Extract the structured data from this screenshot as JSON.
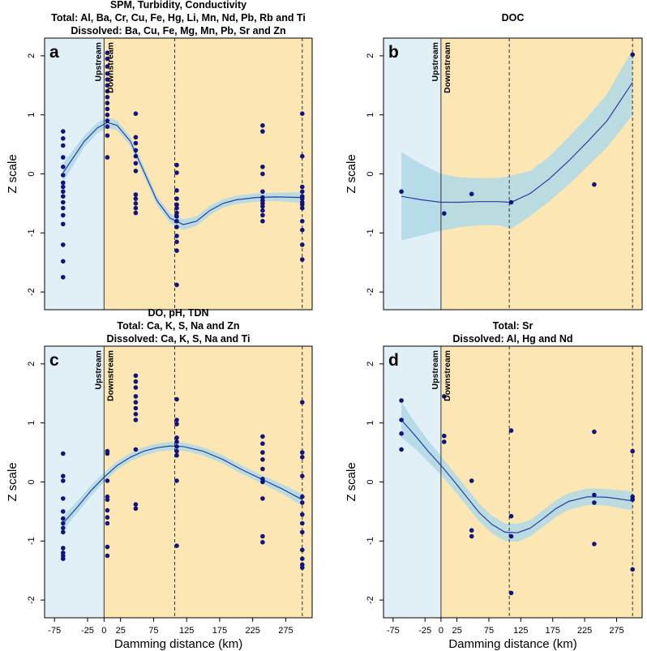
{
  "colors": {
    "upstream_bg": "#E1F0F7",
    "downstream_bg": "#FCE6B3",
    "ci_band": "#AED8E6",
    "fit_line": "#2A3F9F",
    "points": "#11137E"
  },
  "chart_data": [
    {
      "type": "scatter",
      "panel": "a",
      "title_lines": [
        "SPM, Turbidity, Conductivity",
        "Total: Al, Ba, Cr, Cu, Fe, Hg, Li, Mn, Nd, Pb, Rb and Ti",
        "Dissolved: Ba, Cu, Fe, Mg, Mn, Pb, Sr and Zn"
      ],
      "xlabel": "",
      "ylabel": "Z scale",
      "xlim": [
        -90,
        315
      ],
      "ylim": [
        -2.3,
        2.3
      ],
      "x_ticks": [],
      "y_ticks": [
        -2,
        -1,
        0,
        1,
        2
      ],
      "zones": {
        "upstream_label": "Upstream",
        "downstream_label": "Downstream",
        "dam_x": 0,
        "dashed_x": [
          107,
          300
        ]
      },
      "points": [
        [
          -62,
          0.72
        ],
        [
          -62,
          0.6
        ],
        [
          -62,
          0.48
        ],
        [
          -62,
          0.28
        ],
        [
          -62,
          0.12
        ],
        [
          -62,
          -0.02
        ],
        [
          -62,
          -0.15
        ],
        [
          -62,
          -0.22
        ],
        [
          -62,
          -0.3
        ],
        [
          -62,
          -0.38
        ],
        [
          -62,
          -0.48
        ],
        [
          -62,
          -0.58
        ],
        [
          -62,
          -0.7
        ],
        [
          -62,
          -0.85
        ],
        [
          -62,
          -1.2
        ],
        [
          -62,
          -1.48
        ],
        [
          -62,
          -1.75
        ],
        [
          5,
          2.05
        ],
        [
          5,
          1.95
        ],
        [
          5,
          1.82
        ],
        [
          5,
          1.7
        ],
        [
          5,
          1.6
        ],
        [
          5,
          1.5
        ],
        [
          5,
          1.4
        ],
        [
          5,
          1.3
        ],
        [
          5,
          1.2
        ],
        [
          5,
          1.1
        ],
        [
          5,
          1.0
        ],
        [
          5,
          0.9
        ],
        [
          5,
          0.8
        ],
        [
          5,
          0.65
        ],
        [
          5,
          0.28
        ],
        [
          48,
          1.02
        ],
        [
          48,
          0.62
        ],
        [
          48,
          0.52
        ],
        [
          48,
          0.4
        ],
        [
          48,
          0.3
        ],
        [
          48,
          0.18
        ],
        [
          48,
          0.05
        ],
        [
          48,
          -0.35
        ],
        [
          48,
          -0.42
        ],
        [
          48,
          -0.5
        ],
        [
          48,
          -0.58
        ],
        [
          48,
          -0.66
        ],
        [
          110,
          0.15
        ],
        [
          110,
          0.02
        ],
        [
          110,
          -0.28
        ],
        [
          110,
          -0.42
        ],
        [
          110,
          -0.52
        ],
        [
          110,
          -0.58
        ],
        [
          110,
          -0.66
        ],
        [
          110,
          -0.72
        ],
        [
          110,
          -0.8
        ],
        [
          110,
          -0.9
        ],
        [
          110,
          -1.05
        ],
        [
          110,
          -1.15
        ],
        [
          110,
          -1.3
        ],
        [
          110,
          -1.88
        ],
        [
          240,
          0.82
        ],
        [
          240,
          0.72
        ],
        [
          240,
          0.12
        ],
        [
          240,
          0.0
        ],
        [
          240,
          -0.3
        ],
        [
          240,
          -0.4
        ],
        [
          240,
          -0.45
        ],
        [
          240,
          -0.5
        ],
        [
          240,
          -0.55
        ],
        [
          240,
          -0.62
        ],
        [
          240,
          -0.7
        ],
        [
          240,
          -0.8
        ],
        [
          300,
          1.02
        ],
        [
          300,
          0.3
        ],
        [
          300,
          -0.22
        ],
        [
          300,
          -0.3
        ],
        [
          300,
          -0.38
        ],
        [
          300,
          -0.42
        ],
        [
          300,
          -0.48
        ],
        [
          300,
          -0.52
        ],
        [
          300,
          -0.58
        ],
        [
          300,
          -0.8
        ],
        [
          300,
          -0.95
        ],
        [
          300,
          -1.2
        ],
        [
          300,
          -1.45
        ]
      ],
      "fit": [
        [
          -62,
          0.02
        ],
        [
          -30,
          0.55
        ],
        [
          -10,
          0.78
        ],
        [
          5,
          0.87
        ],
        [
          20,
          0.82
        ],
        [
          40,
          0.55
        ],
        [
          60,
          0.05
        ],
        [
          80,
          -0.45
        ],
        [
          100,
          -0.75
        ],
        [
          120,
          -0.86
        ],
        [
          140,
          -0.8
        ],
        [
          160,
          -0.62
        ],
        [
          180,
          -0.5
        ],
        [
          200,
          -0.44
        ],
        [
          230,
          -0.4
        ],
        [
          260,
          -0.39
        ],
        [
          300,
          -0.4
        ]
      ],
      "ci_halfwidth": [
        0.16,
        0.1,
        0.09,
        0.09,
        0.08,
        0.08,
        0.08,
        0.08,
        0.08,
        0.09,
        0.08,
        0.08,
        0.07,
        0.07,
        0.07,
        0.07,
        0.09
      ]
    },
    {
      "type": "scatter",
      "panel": "b",
      "title_lines": [
        "DOC"
      ],
      "xlabel": "",
      "ylabel": "Z scale",
      "xlim": [
        -90,
        315
      ],
      "ylim": [
        -2.3,
        2.3
      ],
      "x_ticks": [],
      "y_ticks": [
        -2,
        -1,
        0,
        1,
        2
      ],
      "zones": {
        "upstream_label": "Upstream",
        "downstream_label": "Downstream",
        "dam_x": 0,
        "dashed_x": [
          107,
          300
        ]
      },
      "points": [
        [
          -62,
          -0.3
        ],
        [
          5,
          -0.67
        ],
        [
          48,
          -0.34
        ],
        [
          110,
          -0.48
        ],
        [
          240,
          -0.18
        ],
        [
          300,
          2.02
        ]
      ],
      "fit": [
        [
          -62,
          -0.38
        ],
        [
          -30,
          -0.44
        ],
        [
          0,
          -0.48
        ],
        [
          30,
          -0.48
        ],
        [
          60,
          -0.47
        ],
        [
          90,
          -0.47
        ],
        [
          110,
          -0.48
        ],
        [
          140,
          -0.33
        ],
        [
          170,
          -0.08
        ],
        [
          200,
          0.22
        ],
        [
          230,
          0.55
        ],
        [
          260,
          0.9
        ],
        [
          300,
          1.55
        ]
      ],
      "ci_halfwidth": [
        0.75,
        0.6,
        0.48,
        0.42,
        0.4,
        0.4,
        0.45,
        0.38,
        0.38,
        0.4,
        0.42,
        0.45,
        0.55
      ]
    },
    {
      "type": "scatter",
      "panel": "c",
      "title_lines": [
        "DO, pH, TDN",
        "Total:  Ca, K, S, Na and Zn",
        "Dissolved: Ca, K, S,  Na and Ti"
      ],
      "xlabel": "Damming distance (km)",
      "ylabel": "Z scale",
      "xlim": [
        -90,
        315
      ],
      "ylim": [
        -2.3,
        2.3
      ],
      "x_ticks": [
        -75,
        -25,
        0,
        25,
        75,
        125,
        175,
        225,
        275
      ],
      "y_ticks": [
        -2,
        -1,
        0,
        1,
        2
      ],
      "zones": {
        "upstream_label": "Upstream",
        "downstream_label": "Downstream",
        "dam_x": 0,
        "dashed_x": [
          107,
          300
        ]
      },
      "points": [
        [
          -62,
          0.48
        ],
        [
          -62,
          0.1
        ],
        [
          -62,
          0.02
        ],
        [
          -62,
          -0.28
        ],
        [
          -62,
          -0.5
        ],
        [
          -62,
          -0.62
        ],
        [
          -62,
          -0.7
        ],
        [
          -62,
          -0.78
        ],
        [
          -62,
          -0.85
        ],
        [
          -62,
          -1.12
        ],
        [
          -62,
          -1.2
        ],
        [
          -62,
          -1.25
        ],
        [
          -62,
          -1.3
        ],
        [
          5,
          0.52
        ],
        [
          5,
          0.48
        ],
        [
          5,
          0.02
        ],
        [
          5,
          -0.25
        ],
        [
          5,
          -0.3
        ],
        [
          5,
          -0.48
        ],
        [
          5,
          -0.6
        ],
        [
          5,
          -0.7
        ],
        [
          5,
          -1.1
        ],
        [
          5,
          -1.25
        ],
        [
          48,
          1.8
        ],
        [
          48,
          1.7
        ],
        [
          48,
          1.6
        ],
        [
          48,
          1.45
        ],
        [
          48,
          1.35
        ],
        [
          48,
          1.25
        ],
        [
          48,
          1.15
        ],
        [
          48,
          1.05
        ],
        [
          48,
          0.55
        ],
        [
          48,
          -0.38
        ],
        [
          48,
          -0.45
        ],
        [
          110,
          1.4
        ],
        [
          110,
          1.05
        ],
        [
          110,
          0.98
        ],
        [
          110,
          0.75
        ],
        [
          110,
          0.68
        ],
        [
          110,
          0.6
        ],
        [
          110,
          0.52
        ],
        [
          110,
          0.45
        ],
        [
          110,
          0.02
        ],
        [
          110,
          -1.08
        ],
        [
          240,
          0.77
        ],
        [
          240,
          0.65
        ],
        [
          240,
          0.5
        ],
        [
          240,
          0.38
        ],
        [
          240,
          0.22
        ],
        [
          240,
          0.05
        ],
        [
          240,
          0.0
        ],
        [
          240,
          -0.28
        ],
        [
          240,
          -0.92
        ],
        [
          240,
          -1.02
        ],
        [
          300,
          1.35
        ],
        [
          300,
          0.5
        ],
        [
          300,
          0.42
        ],
        [
          300,
          0.1
        ],
        [
          300,
          -0.25
        ],
        [
          300,
          -0.35
        ],
        [
          300,
          -0.55
        ],
        [
          300,
          -0.7
        ],
        [
          300,
          -0.85
        ],
        [
          300,
          -1.15
        ],
        [
          300,
          -1.3
        ],
        [
          300,
          -1.4
        ],
        [
          300,
          -1.45
        ]
      ],
      "fit": [
        [
          -62,
          -0.7
        ],
        [
          -40,
          -0.42
        ],
        [
          -20,
          -0.15
        ],
        [
          0,
          0.08
        ],
        [
          20,
          0.28
        ],
        [
          40,
          0.42
        ],
        [
          60,
          0.52
        ],
        [
          80,
          0.58
        ],
        [
          100,
          0.61
        ],
        [
          120,
          0.6
        ],
        [
          150,
          0.52
        ],
        [
          180,
          0.38
        ],
        [
          210,
          0.2
        ],
        [
          240,
          0.04
        ],
        [
          270,
          -0.12
        ],
        [
          300,
          -0.3
        ]
      ],
      "ci_halfwidth": [
        0.12,
        0.1,
        0.09,
        0.08,
        0.07,
        0.07,
        0.07,
        0.07,
        0.07,
        0.07,
        0.07,
        0.07,
        0.07,
        0.07,
        0.08,
        0.1
      ]
    },
    {
      "type": "scatter",
      "panel": "d",
      "title_lines": [
        "Total: Sr",
        "Dissolved: Al, Hg and Nd"
      ],
      "xlabel": "Damming distance (km)",
      "ylabel": "Z scale",
      "xlim": [
        -90,
        315
      ],
      "ylim": [
        -2.3,
        2.3
      ],
      "x_ticks": [
        -75,
        -25,
        0,
        25,
        75,
        125,
        175,
        225,
        275
      ],
      "y_ticks": [
        -2,
        -1,
        0,
        1,
        2
      ],
      "zones": {
        "upstream_label": "Upstream",
        "downstream_label": "Downstream",
        "dam_x": 0,
        "dashed_x": [
          107,
          300
        ]
      },
      "points": [
        [
          -62,
          1.38
        ],
        [
          -62,
          1.05
        ],
        [
          -62,
          0.82
        ],
        [
          -62,
          0.55
        ],
        [
          5,
          1.45
        ],
        [
          5,
          0.78
        ],
        [
          5,
          0.68
        ],
        [
          48,
          0.02
        ],
        [
          48,
          -0.82
        ],
        [
          48,
          -0.92
        ],
        [
          110,
          0.87
        ],
        [
          110,
          -0.58
        ],
        [
          110,
          -0.92
        ],
        [
          110,
          -1.88
        ],
        [
          240,
          0.85
        ],
        [
          240,
          -0.22
        ],
        [
          240,
          -0.35
        ],
        [
          240,
          -1.05
        ],
        [
          300,
          0.52
        ],
        [
          300,
          -0.25
        ],
        [
          300,
          -0.3
        ],
        [
          300,
          -1.48
        ]
      ],
      "fit": [
        [
          -62,
          1.05
        ],
        [
          -40,
          0.78
        ],
        [
          -20,
          0.52
        ],
        [
          0,
          0.28
        ],
        [
          20,
          0.02
        ],
        [
          40,
          -0.25
        ],
        [
          60,
          -0.52
        ],
        [
          80,
          -0.72
        ],
        [
          100,
          -0.85
        ],
        [
          120,
          -0.86
        ],
        [
          140,
          -0.78
        ],
        [
          160,
          -0.62
        ],
        [
          180,
          -0.45
        ],
        [
          200,
          -0.33
        ],
        [
          230,
          -0.25
        ],
        [
          260,
          -0.26
        ],
        [
          300,
          -0.32
        ]
      ],
      "ci_halfwidth": [
        0.3,
        0.22,
        0.18,
        0.16,
        0.15,
        0.15,
        0.15,
        0.15,
        0.15,
        0.15,
        0.14,
        0.14,
        0.14,
        0.14,
        0.14,
        0.14,
        0.16
      ]
    }
  ]
}
